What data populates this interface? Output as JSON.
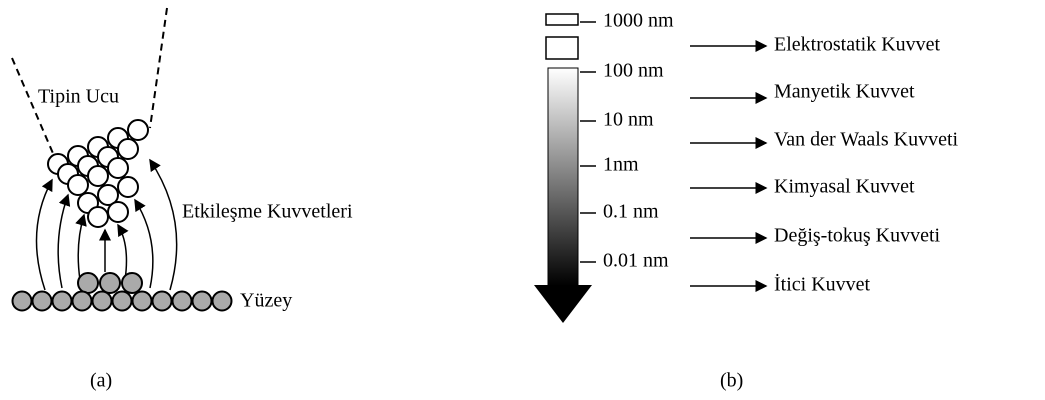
{
  "panel_a": {
    "tip_label": "Tipin Ucu",
    "force_label": "Etkileşme Kuvvetleri",
    "surface_label": "Yüzey",
    "caption": "(a)"
  },
  "panel_b": {
    "scale_labels": [
      "1000 nm",
      "100 nm",
      "10 nm",
      "1nm",
      "0.1 nm",
      "0.01 nm"
    ],
    "forces": [
      "Elektrostatik Kuvvet",
      "Manyetik Kuvvet",
      "Van der Waals Kuvveti",
      "Kimyasal Kuvvet",
      "Değiş-tokuş Kuvveti",
      "İtici Kuvvet"
    ],
    "caption": "(b)"
  }
}
